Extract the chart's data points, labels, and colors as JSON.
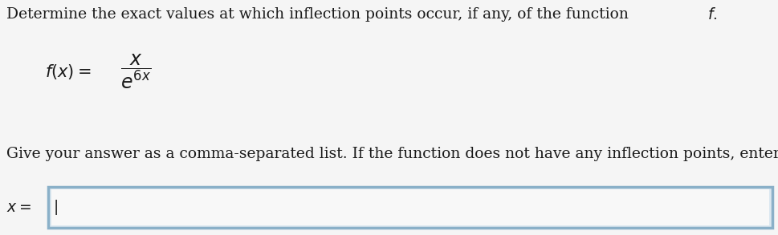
{
  "bg_color": "#f5f5f5",
  "title_line": "Determine the exact values at which inflection points occur, if any, of the function ",
  "title_f": "f",
  "instruction": "Give your answer as a comma-separated list. If the function does not have any inflection points, enter DNE.",
  "answer_label": "x =",
  "box_border_color": "#8ab0c8",
  "box_fill_color": "#dce8f0",
  "inner_fill_color": "#f8f8f8",
  "text_color": "#1a1a1a",
  "font_size_title": 13.5,
  "font_size_formula": 15,
  "font_size_instruction": 13.5,
  "font_size_answer": 13.5,
  "cursor_char": "|"
}
